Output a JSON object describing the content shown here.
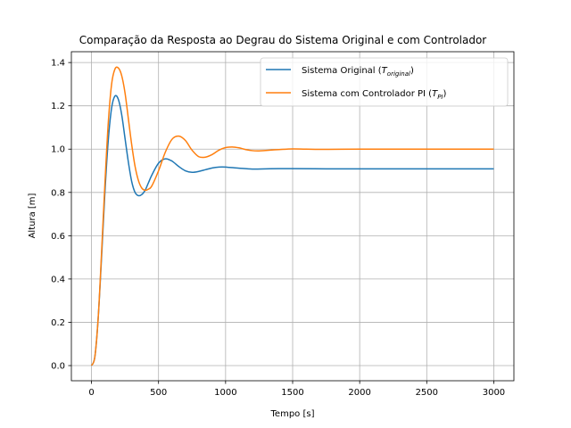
{
  "chart_data": {
    "type": "line",
    "title": "Comparação da Resposta ao Degrau do Sistema Original e com Controlador",
    "xlabel": "Tempo [s]",
    "ylabel": "Altura [m]",
    "xlim": [
      -150,
      3150
    ],
    "ylim": [
      -0.07,
      1.45
    ],
    "xticks": [
      0,
      500,
      1000,
      1500,
      2000,
      2500,
      3000
    ],
    "yticks": [
      0.0,
      0.2,
      0.4,
      0.6,
      0.8,
      1.0,
      1.2,
      1.4
    ],
    "xtick_labels": [
      "0",
      "500",
      "1000",
      "1500",
      "2000",
      "2500",
      "3000"
    ],
    "ytick_labels": [
      "0.0",
      "0.2",
      "0.4",
      "0.6",
      "0.8",
      "1.0",
      "1.2",
      "1.4"
    ],
    "grid": true,
    "legend_position": "top-right",
    "series": [
      {
        "name": "Sistema Original",
        "name_subscript": "original",
        "color": "#1f77b4",
        "x": [
          0,
          25,
          50,
          75,
          100,
          125,
          150,
          175,
          200,
          225,
          250,
          275,
          300,
          325,
          350,
          375,
          400,
          425,
          450,
          500,
          550,
          600,
          650,
          700,
          750,
          800,
          850,
          900,
          950,
          1000,
          1100,
          1200,
          1300,
          1400,
          1500,
          1750,
          2000,
          2500,
          3000
        ],
        "values": [
          0.0,
          0.04,
          0.22,
          0.5,
          0.8,
          1.04,
          1.19,
          1.245,
          1.23,
          1.16,
          1.05,
          0.94,
          0.85,
          0.8,
          0.785,
          0.79,
          0.81,
          0.845,
          0.88,
          0.935,
          0.955,
          0.945,
          0.92,
          0.9,
          0.893,
          0.897,
          0.905,
          0.913,
          0.917,
          0.917,
          0.912,
          0.908,
          0.909,
          0.91,
          0.91,
          0.909,
          0.909,
          0.909,
          0.909
        ]
      },
      {
        "name": "Sistema com Controlador PI",
        "name_subscript": "PI",
        "color": "#ff7f0e",
        "x": [
          0,
          25,
          50,
          75,
          100,
          125,
          150,
          175,
          200,
          225,
          250,
          275,
          300,
          325,
          350,
          375,
          400,
          425,
          450,
          500,
          550,
          600,
          650,
          700,
          750,
          800,
          850,
          900,
          950,
          1000,
          1050,
          1100,
          1150,
          1200,
          1250,
          1300,
          1400,
          1500,
          1600,
          1750,
          2000,
          2500,
          3000
        ],
        "values": [
          0.0,
          0.04,
          0.22,
          0.52,
          0.84,
          1.12,
          1.3,
          1.37,
          1.375,
          1.34,
          1.26,
          1.14,
          1.02,
          0.92,
          0.855,
          0.82,
          0.81,
          0.815,
          0.83,
          0.9,
          0.985,
          1.045,
          1.06,
          1.04,
          0.995,
          0.965,
          0.963,
          0.975,
          0.995,
          1.007,
          1.01,
          1.006,
          0.998,
          0.993,
          0.992,
          0.994,
          0.998,
          1.001,
          1.0,
          0.999,
          1.0,
          1.0,
          1.0
        ]
      }
    ]
  }
}
